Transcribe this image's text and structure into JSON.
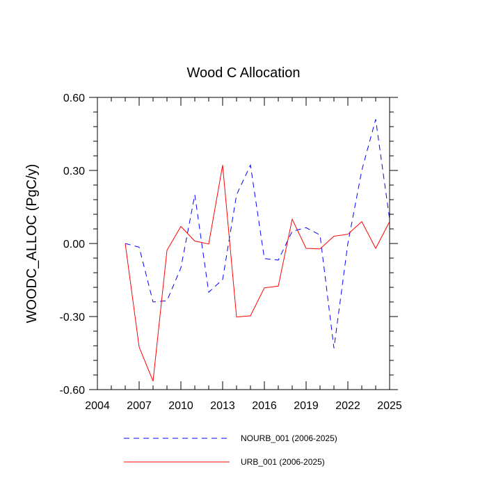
{
  "chart_data": {
    "type": "line",
    "title": "Wood C Allocation",
    "xlabel": "",
    "ylabel": "WOODC_ALLOC  (PgC/y)",
    "xlim": [
      2004,
      2025
    ],
    "ylim": [
      -0.6,
      0.6
    ],
    "xticks": [
      2004,
      2007,
      2010,
      2013,
      2016,
      2019,
      2022,
      2025
    ],
    "xtick_labels": [
      "2004",
      "2007",
      "2010",
      "2013",
      "2016",
      "2019",
      "2022",
      "2025"
    ],
    "yticks": [
      -0.6,
      -0.3,
      0.0,
      0.3,
      0.6
    ],
    "ytick_labels": [
      "-0.60",
      "-0.30",
      "0.00",
      "0.30",
      "0.60"
    ],
    "x": [
      2006,
      2007,
      2008,
      2009,
      2010,
      2011,
      2012,
      2013,
      2014,
      2015,
      2016,
      2017,
      2018,
      2019,
      2020,
      2021,
      2022,
      2023,
      2024,
      2025
    ],
    "series": [
      {
        "name": "NOURB_001 (2006-2025)",
        "color": "#0000ff",
        "dash": "dashed",
        "values": [
          0.0,
          -0.015,
          -0.24,
          -0.235,
          -0.1,
          0.2,
          -0.2,
          -0.148,
          0.2,
          0.322,
          -0.062,
          -0.068,
          0.05,
          0.065,
          0.035,
          -0.43,
          0.0,
          0.3,
          0.51,
          0.1
        ]
      },
      {
        "name": "URB_001 (2006-2025)",
        "color": "#ff0000",
        "dash": "solid",
        "values": [
          0.0,
          -0.425,
          -0.565,
          -0.028,
          0.07,
          0.01,
          -0.002,
          0.322,
          -0.302,
          -0.297,
          -0.182,
          -0.175,
          0.1,
          -0.02,
          -0.022,
          0.03,
          0.038,
          0.09,
          -0.02,
          0.09
        ]
      }
    ],
    "grid": false,
    "legend_position": "bottom"
  }
}
